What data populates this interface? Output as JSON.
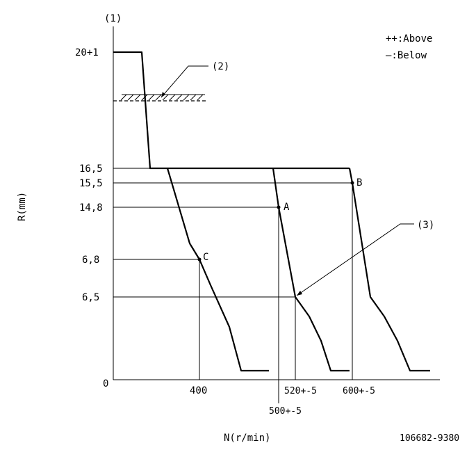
{
  "figure": {
    "marker_1": "(1)",
    "marker_2": "(2)",
    "marker_3": "(3)",
    "legend_above": "++:Above",
    "legend_below": "—:Below",
    "y_axis_label": "R(mm)",
    "x_axis_label": "N(r/min)",
    "drawing_code": "106682-9380"
  },
  "y_ticks": {
    "t20": "20+1",
    "t165": "16,5",
    "t155": "15,5",
    "t148": "14,8",
    "t68": "6,8",
    "t65": "6,5",
    "t0": "0"
  },
  "x_ticks": {
    "t400": "400",
    "t500": "500+-5",
    "t520": "520+-5",
    "t600": "600+-5"
  },
  "points": {
    "A": "A",
    "B": "B",
    "C": "C"
  }
}
